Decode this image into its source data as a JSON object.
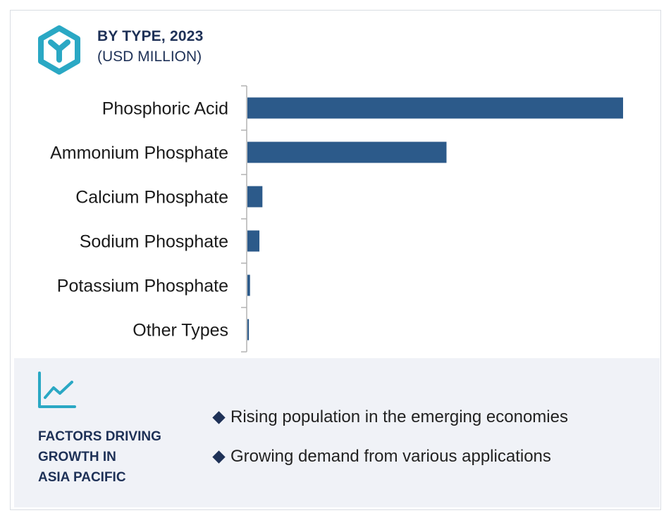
{
  "header": {
    "title": "BY TYPE, 2023",
    "subtitle": "(USD MILLION)",
    "logo_icon": "hexagon-y-icon"
  },
  "colors": {
    "bar": "#2c5a8a",
    "accent": "#2aa8c4",
    "navy": "#1e3157",
    "panel_bg": "#f0f2f7"
  },
  "chart_data": {
    "type": "bar",
    "orientation": "horizontal",
    "title": "BY TYPE, 2023",
    "subtitle": "(USD MILLION)",
    "categories": [
      "Phosphoric Acid",
      "Ammonium Phosphate",
      "Calcium Phosphate",
      "Sodium Phosphate",
      "Potassium Phosphate",
      "Other Types"
    ],
    "values": [
      100,
      53,
      4,
      3.2,
      0.7,
      0.4
    ],
    "xlim": [
      0,
      100
    ],
    "grid": false,
    "value_axis_shown": false
  },
  "factors": {
    "icon": "trend-chart-icon",
    "title_lines": [
      "FACTORS DRIVING",
      "GROWTH IN",
      "ASIA PACIFIC"
    ],
    "bullets": [
      "Rising population in the emerging economies",
      "Growing demand from various applications"
    ]
  }
}
